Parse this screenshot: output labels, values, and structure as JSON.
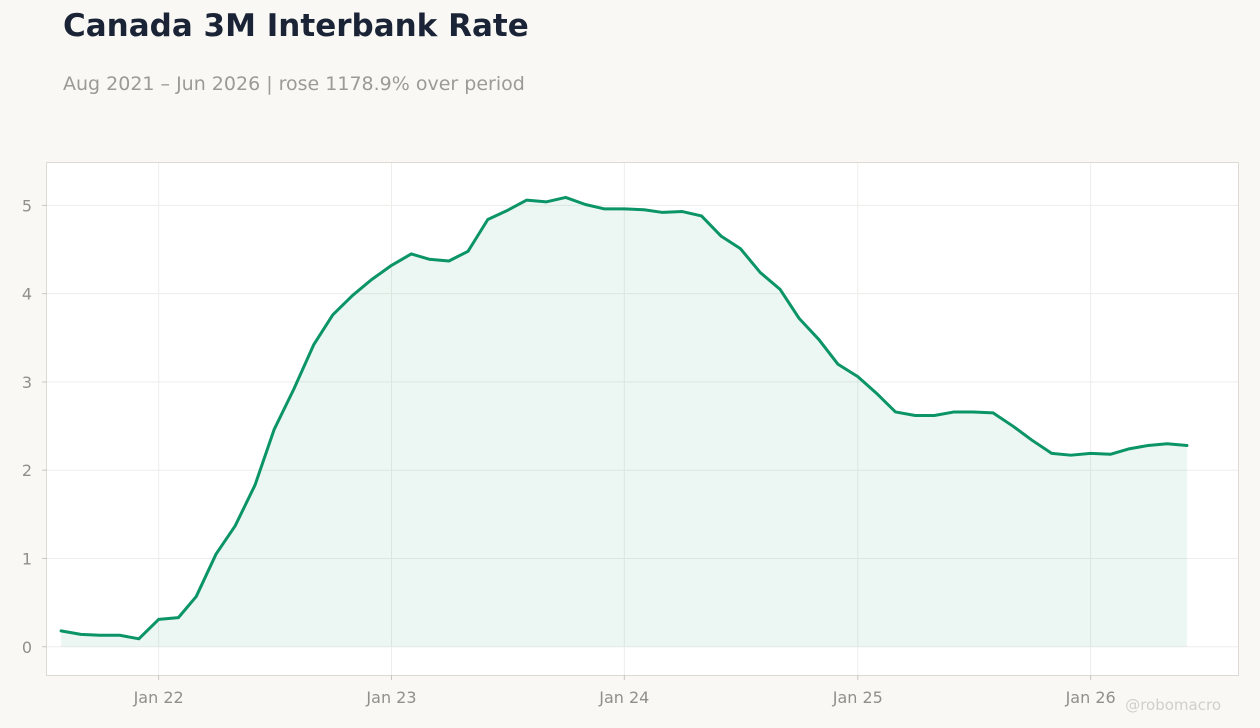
{
  "chart_data": {
    "type": "area",
    "title": "Canada 3M Interbank Rate",
    "subtitle": "Aug 2021 – Jun 2026 | rose 1178.9% over period",
    "watermark": "@robomacro",
    "xlabel": "",
    "ylabel": "",
    "ylim": [
      -0.32,
      5.48
    ],
    "yticks": [
      0,
      1,
      2,
      3,
      4,
      5
    ],
    "xlim": [
      "2021-07-10",
      "2026-08-20"
    ],
    "xticks": [
      {
        "date": "2022-01-01",
        "label": "Jan 22"
      },
      {
        "date": "2023-01-01",
        "label": "Jan 23"
      },
      {
        "date": "2024-01-01",
        "label": "Jan 24"
      },
      {
        "date": "2025-01-01",
        "label": "Jan 25"
      },
      {
        "date": "2026-01-01",
        "label": "Jan 26"
      }
    ],
    "grid": true,
    "colors": {
      "line": "#0b9467",
      "fill": "#0b9467",
      "grid": "#ededeb",
      "frame": "#dcdad3"
    },
    "series": [
      {
        "name": "",
        "x": [
          "2021-08-01",
          "2021-09-01",
          "2021-10-01",
          "2021-11-01",
          "2021-12-01",
          "2022-01-01",
          "2022-02-01",
          "2022-03-01",
          "2022-04-01",
          "2022-05-01",
          "2022-06-01",
          "2022-07-01",
          "2022-08-01",
          "2022-09-01",
          "2022-10-01",
          "2022-11-01",
          "2022-12-01",
          "2023-01-01",
          "2023-02-01",
          "2023-03-01",
          "2023-04-01",
          "2023-05-01",
          "2023-06-01",
          "2023-07-01",
          "2023-08-01",
          "2023-09-01",
          "2023-10-01",
          "2023-11-01",
          "2023-12-01",
          "2024-01-01",
          "2024-02-01",
          "2024-03-01",
          "2024-04-01",
          "2024-05-01",
          "2024-06-01",
          "2024-07-01",
          "2024-08-01",
          "2024-09-01",
          "2024-10-01",
          "2024-11-01",
          "2024-12-01",
          "2025-01-01",
          "2025-02-01",
          "2025-03-01",
          "2025-04-01",
          "2025-05-01",
          "2025-06-01",
          "2025-07-01",
          "2025-08-01",
          "2025-09-01",
          "2025-10-01",
          "2025-11-01",
          "2025-12-01",
          "2026-01-01",
          "2026-02-01",
          "2026-03-01",
          "2026-04-01",
          "2026-05-01",
          "2026-06-01"
        ],
        "values": [
          0.18,
          0.14,
          0.13,
          0.13,
          0.09,
          0.31,
          0.33,
          0.57,
          1.05,
          1.37,
          1.83,
          2.46,
          2.92,
          3.42,
          3.76,
          3.98,
          4.16,
          4.32,
          4.45,
          4.39,
          4.37,
          4.48,
          4.84,
          4.94,
          5.06,
          5.04,
          5.09,
          5.01,
          4.96,
          4.96,
          4.95,
          4.92,
          4.93,
          4.88,
          4.65,
          4.51,
          4.24,
          4.05,
          3.72,
          3.48,
          3.2,
          3.06,
          2.86,
          2.66,
          2.62,
          2.62,
          2.66,
          2.66,
          2.65,
          2.5,
          2.34,
          2.19,
          2.17,
          2.19,
          2.18,
          2.24,
          2.28,
          2.3,
          2.28
        ]
      }
    ]
  }
}
